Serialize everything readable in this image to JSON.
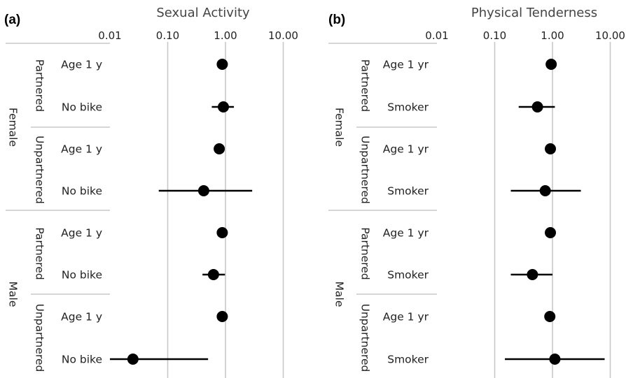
{
  "chart_data": [
    {
      "type": "forest",
      "panel": "(a)",
      "title": "Sexual Activity",
      "x_scale": "log",
      "x_ticks": [
        "0.01",
        "0.10",
        "1.00",
        "10.00"
      ],
      "xlim": [
        0.01,
        10
      ],
      "grid": true,
      "groups": [
        {
          "sex": "Female",
          "status": "Partnered",
          "rows": [
            {
              "label": "Age 1 y",
              "est": 0.88,
              "lo": null,
              "hi": null
            },
            {
              "label": "No bike",
              "est": 0.92,
              "lo": 0.58,
              "hi": 1.4
            }
          ]
        },
        {
          "sex": "Female",
          "status": "Unpartnered",
          "rows": [
            {
              "label": "Age 1 y",
              "est": 0.78,
              "lo": null,
              "hi": null
            },
            {
              "label": "No bike",
              "est": 0.42,
              "lo": 0.07,
              "hi": 2.9
            }
          ]
        },
        {
          "sex": "Male",
          "status": "Partnered",
          "rows": [
            {
              "label": "Age 1 y",
              "est": 0.88,
              "lo": null,
              "hi": null
            },
            {
              "label": "No bike",
              "est": 0.62,
              "lo": 0.4,
              "hi": 0.98
            }
          ]
        },
        {
          "sex": "Male",
          "status": "Unpartnered",
          "rows": [
            {
              "label": "Age 1 y",
              "est": 0.88,
              "lo": null,
              "hi": null
            },
            {
              "label": "No bike",
              "est": 0.025,
              "lo": 0.01,
              "hi": 0.5
            }
          ]
        }
      ]
    },
    {
      "type": "forest",
      "panel": "(b)",
      "title": "Physical Tenderness",
      "x_scale": "log",
      "x_ticks": [
        "0.01",
        "0.10",
        "1.00",
        "10.00"
      ],
      "xlim": [
        0.01,
        10
      ],
      "grid": true,
      "groups": [
        {
          "sex": "Female",
          "status": "Partnered",
          "rows": [
            {
              "label": "Age 1 yr",
              "est": 0.95,
              "lo": null,
              "hi": null
            },
            {
              "label": "Smoker",
              "est": 0.55,
              "lo": 0.26,
              "hi": 1.1
            }
          ]
        },
        {
          "sex": "Female",
          "status": "Unpartnered",
          "rows": [
            {
              "label": "Age 1 yr",
              "est": 0.92,
              "lo": null,
              "hi": null
            },
            {
              "label": "Smoker",
              "est": 0.75,
              "lo": 0.19,
              "hi": 3.1
            }
          ]
        },
        {
          "sex": "Male",
          "status": "Partnered",
          "rows": [
            {
              "label": "Age 1 yr",
              "est": 0.92,
              "lo": null,
              "hi": null
            },
            {
              "label": "Smoker",
              "est": 0.45,
              "lo": 0.19,
              "hi": 1.0
            }
          ]
        },
        {
          "sex": "Male",
          "status": "Unpartnered",
          "rows": [
            {
              "label": "Age 1 yr",
              "est": 0.9,
              "lo": null,
              "hi": null
            },
            {
              "label": "Smoker",
              "est": 1.1,
              "lo": 0.15,
              "hi": 8.0
            }
          ]
        }
      ]
    }
  ]
}
